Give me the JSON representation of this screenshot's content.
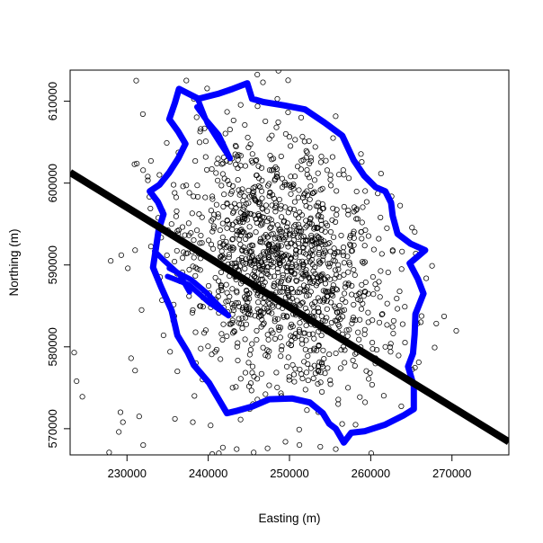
{
  "chart_data": {
    "type": "scatter",
    "title": "",
    "xlabel": "Easting (m)",
    "ylabel": "Northing (m)",
    "xlim": [
      223000,
      277000
    ],
    "ylim": [
      566800,
      613800
    ],
    "x_ticks": [
      230000,
      240000,
      250000,
      260000,
      270000
    ],
    "x_tick_labels": [
      "230000",
      "240000",
      "250000",
      "260000",
      "270000"
    ],
    "y_ticks": [
      570000,
      580000,
      590000,
      600000,
      610000
    ],
    "y_tick_labels": [
      "570000",
      "580000",
      "590000",
      "600000",
      "610000"
    ],
    "grid": false,
    "legend": "none",
    "points_color": "#000000",
    "points": {
      "description": "about 1300 open-circle observations; dense core near (249000, 590000)",
      "cluster_center": [
        249000,
        590000
      ],
      "outliers": [
        [
          223500,
          579300
        ],
        [
          223800,
          575800
        ],
        [
          224500,
          573900
        ],
        [
          227800,
          567100
        ],
        [
          229200,
          572000
        ],
        [
          229500,
          570800
        ],
        [
          229000,
          569600
        ],
        [
          230500,
          578600
        ],
        [
          231000,
          577100
        ],
        [
          231500,
          571500
        ],
        [
          232000,
          568000
        ],
        [
          228000,
          590500
        ],
        [
          229300,
          591200
        ],
        [
          230100,
          589600
        ],
        [
          231000,
          591800
        ],
        [
          231800,
          584500
        ],
        [
          233500,
          598100
        ],
        [
          234000,
          601000
        ],
        [
          234900,
          604900
        ],
        [
          238100,
          570800
        ],
        [
          235900,
          571200
        ],
        [
          240300,
          570400
        ],
        [
          240500,
          566900
        ],
        [
          241300,
          567000
        ],
        [
          241800,
          567700
        ],
        [
          243500,
          567500
        ],
        [
          245600,
          567100
        ],
        [
          247300,
          567600
        ],
        [
          249500,
          568400
        ],
        [
          251200,
          569900
        ],
        [
          253800,
          567800
        ],
        [
          255700,
          567500
        ],
        [
          237600,
          595100
        ],
        [
          236900,
          599600
        ],
        [
          238400,
          602700
        ],
        [
          239700,
          605100
        ],
        [
          241800,
          604900
        ],
        [
          244500,
          607100
        ],
        [
          248400,
          606800
        ],
        [
          250700,
          605300
        ],
        [
          255100,
          599700
        ],
        [
          257300,
          600600
        ],
        [
          259500,
          597700
        ],
        [
          261200,
          595800
        ],
        [
          262000,
          594500
        ],
        [
          263800,
          589500
        ],
        [
          263200,
          585900
        ],
        [
          264200,
          584900
        ],
        [
          261800,
          580000
        ],
        [
          260600,
          578600
        ],
        [
          259900,
          576800
        ],
        [
          257200,
          575000
        ],
        [
          256300,
          577400
        ],
        [
          256800,
          579600
        ],
        [
          255000,
          575900
        ],
        [
          256000,
          573000
        ],
        [
          254000,
          574500
        ],
        [
          252300,
          575900
        ],
        [
          249000,
          574000
        ],
        [
          247500,
          575300
        ],
        [
          244000,
          576100
        ],
        [
          243000,
          575000
        ],
        [
          241500,
          578500
        ],
        [
          239300,
          576000
        ],
        [
          238300,
          574000
        ],
        [
          236200,
          577000
        ],
        [
          235300,
          579400
        ],
        [
          234500,
          581400
        ],
        [
          235700,
          583200
        ]
      ]
    },
    "boundary": {
      "color": "#0000ff",
      "style": "thick line",
      "vertices": [
        [
          236400,
          611500
        ],
        [
          238800,
          610300
        ],
        [
          241200,
          610900
        ],
        [
          243000,
          611500
        ],
        [
          244800,
          612200
        ],
        [
          245400,
          610300
        ],
        [
          246800,
          609900
        ],
        [
          249300,
          609500
        ],
        [
          251900,
          609000
        ],
        [
          254300,
          607400
        ],
        [
          256500,
          605800
        ],
        [
          257900,
          602800
        ],
        [
          259200,
          600900
        ],
        [
          260600,
          599500
        ],
        [
          261800,
          599000
        ],
        [
          262500,
          597600
        ],
        [
          262700,
          596000
        ],
        [
          263300,
          593800
        ],
        [
          264900,
          592600
        ],
        [
          266700,
          591800
        ],
        [
          264800,
          590200
        ],
        [
          265800,
          588300
        ],
        [
          266500,
          586500
        ],
        [
          265500,
          584000
        ],
        [
          265400,
          581500
        ],
        [
          265200,
          579200
        ],
        [
          264600,
          577600
        ],
        [
          265300,
          575200
        ],
        [
          265300,
          572400
        ],
        [
          264000,
          571600
        ],
        [
          261800,
          570500
        ],
        [
          259300,
          569700
        ],
        [
          257600,
          569500
        ],
        [
          256700,
          568300
        ],
        [
          255700,
          570000
        ],
        [
          254900,
          570600
        ],
        [
          254100,
          571900
        ],
        [
          252500,
          573200
        ],
        [
          250300,
          573700
        ],
        [
          247500,
          573600
        ],
        [
          245400,
          572700
        ],
        [
          243600,
          572200
        ],
        [
          242300,
          571900
        ],
        [
          240100,
          575600
        ],
        [
          238200,
          577800
        ],
        [
          237500,
          579300
        ],
        [
          236200,
          581400
        ],
        [
          235500,
          584400
        ],
        [
          234200,
          587300
        ],
        [
          233200,
          589700
        ],
        [
          233600,
          592300
        ],
        [
          233900,
          594300
        ],
        [
          234500,
          596200
        ],
        [
          233800,
          597700
        ],
        [
          232800,
          599000
        ],
        [
          234000,
          599800
        ],
        [
          235200,
          601300
        ],
        [
          236300,
          603000
        ],
        [
          237200,
          604800
        ],
        [
          236300,
          606300
        ],
        [
          235200,
          607800
        ],
        [
          235900,
          609800
        ],
        [
          236400,
          611500
        ]
      ],
      "inner_spurs": [
        [
          [
            233400,
            591700
          ],
          [
            234500,
            590600
          ],
          [
            236500,
            588800
          ],
          [
            237700,
            586700
          ]
        ],
        [
          [
            235000,
            588600
          ],
          [
            237600,
            587600
          ],
          [
            240100,
            585400
          ],
          [
            242500,
            583800
          ]
        ],
        [
          [
            242500,
            583800
          ],
          [
            239800,
            586600
          ],
          [
            237900,
            588200
          ],
          [
            235200,
            589600
          ]
        ],
        [
          [
            238700,
            610300
          ],
          [
            239900,
            607300
          ],
          [
            241500,
            604800
          ],
          [
            242700,
            603000
          ]
        ],
        [
          [
            242700,
            603000
          ],
          [
            241300,
            605900
          ],
          [
            239600,
            607900
          ],
          [
            238600,
            609300
          ]
        ]
      ]
    },
    "line": {
      "color": "#000000",
      "style": "very thick line",
      "x": [
        223000,
        277000
      ],
      "y": [
        601300,
        568400
      ]
    }
  }
}
